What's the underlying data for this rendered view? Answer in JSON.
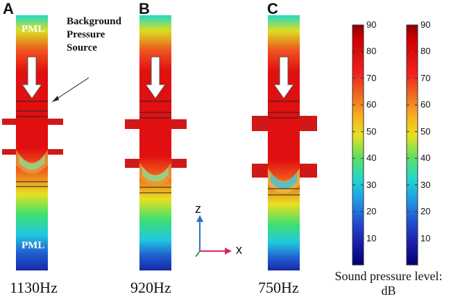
{
  "panels": [
    {
      "letter": "A",
      "frequency": "1130Hz"
    },
    {
      "letter": "B",
      "frequency": "920Hz"
    },
    {
      "letter": "C",
      "frequency": "750Hz"
    }
  ],
  "labels": {
    "pml": "PML",
    "source_line1": "Background",
    "source_line2": "Pressure",
    "source_line3": "Source"
  },
  "axes": {
    "z": "z",
    "x": "x"
  },
  "colorbar": {
    "ticks": [
      "90",
      "80",
      "70",
      "60",
      "50",
      "40",
      "30",
      "20",
      "10"
    ],
    "range": [
      0,
      90
    ],
    "title_line1": "Sound pressure level:",
    "title_line2": "dB"
  },
  "colors": {
    "colormap": [
      "#8b0000",
      "#e01010",
      "#f05020",
      "#f6a020",
      "#e8e020",
      "#40e070",
      "#20d8d0",
      "#2080e0",
      "#1828b8",
      "#000070"
    ],
    "arrow": "#ffffff",
    "z_axis": "#3070c0",
    "x_axis": "#e02070"
  }
}
